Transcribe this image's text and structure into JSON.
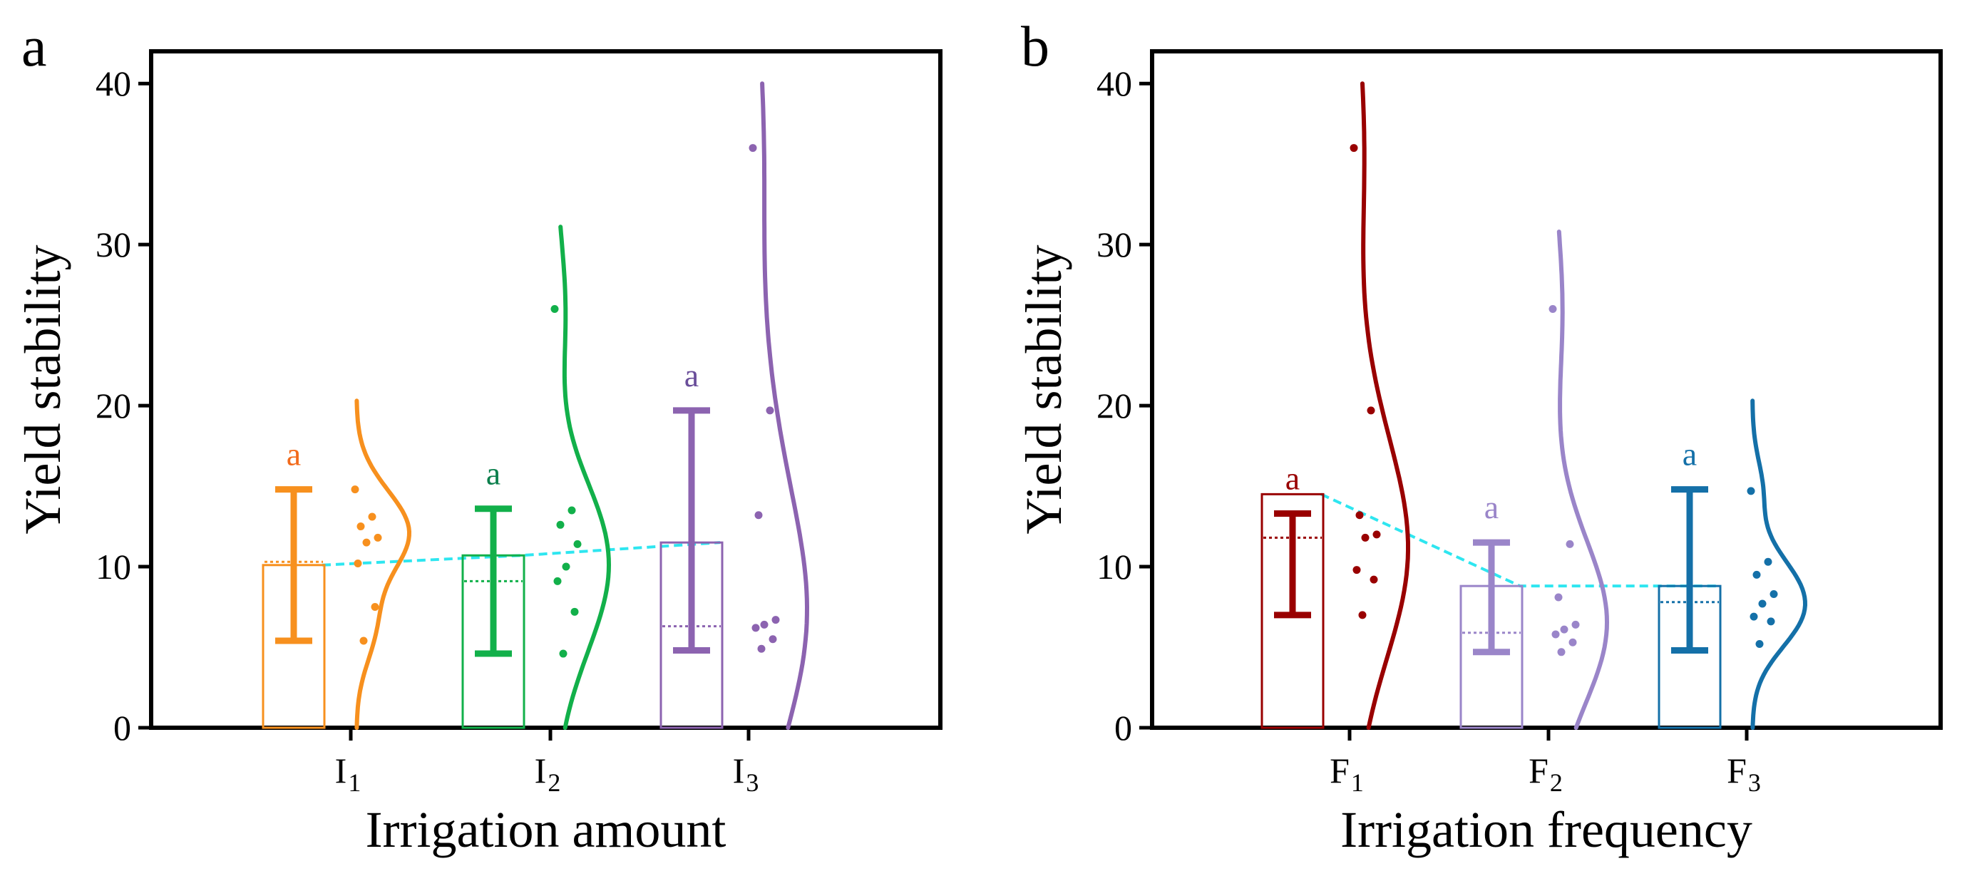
{
  "panels": [
    {
      "letter": "a",
      "xlabel": "Irrigation amount",
      "ylabel": "Yield stability"
    },
    {
      "letter": "b",
      "xlabel": "Irrigation frequency",
      "ylabel": "Yield stability"
    }
  ],
  "chart_data": [
    {
      "type": "bar",
      "title": "",
      "panel_letter": "a",
      "xlabel": "Irrigation amount",
      "ylabel": "Yield stability",
      "ylim": [
        0,
        42
      ],
      "yticks": [
        0,
        10,
        20,
        30,
        40
      ],
      "grid": false,
      "legend": "none",
      "categories": [
        {
          "base": "I",
          "sub": "1"
        },
        {
          "base": "I",
          "sub": "2"
        },
        {
          "base": "I",
          "sub": "3"
        }
      ],
      "colors": [
        "#f7901e",
        "#12b04a",
        "#8c63b0"
      ],
      "letter_colors": [
        "#f26a1b",
        "#0b7f4c",
        "#6a4e9a"
      ],
      "mean": [
        10.1,
        10.7,
        11.5
      ],
      "median": [
        10.3,
        9.1,
        6.3
      ],
      "err_low": [
        5.4,
        4.6,
        4.8
      ],
      "err_high": [
        14.8,
        13.6,
        19.7
      ],
      "significance": [
        "a",
        "a",
        "a"
      ],
      "points": [
        [
          14.8,
          13.1,
          12.5,
          11.8,
          11.5,
          10.2,
          7.5,
          5.4
        ],
        [
          26.0,
          13.5,
          12.6,
          11.4,
          10.0,
          9.1,
          7.2,
          4.6
        ],
        [
          36.0,
          19.7,
          13.2,
          6.7,
          6.4,
          6.2,
          5.5,
          4.9
        ]
      ],
      "density_range": [
        [
          0,
          20.3
        ],
        [
          0,
          31.1
        ],
        [
          0,
          40.0
        ]
      ]
    },
    {
      "type": "bar",
      "title": "",
      "panel_letter": "b",
      "xlabel": "Irrigation frequency",
      "ylabel": "Yield stability",
      "ylim": [
        0,
        42
      ],
      "yticks": [
        0,
        10,
        20,
        30,
        40
      ],
      "grid": false,
      "legend": "none",
      "categories": [
        {
          "base": "F",
          "sub": "1"
        },
        {
          "base": "F",
          "sub": "2"
        },
        {
          "base": "F",
          "sub": "3"
        }
      ],
      "colors": [
        "#990000",
        "#9a85c9",
        "#1470a8"
      ],
      "letter_colors": [
        "#990000",
        "#9a85c9",
        "#1470a8"
      ],
      "mean": [
        14.5,
        8.8,
        8.8
      ],
      "median": [
        11.8,
        5.9,
        7.8
      ],
      "err_low": [
        7.0,
        4.7,
        4.8
      ],
      "err_high": [
        13.3,
        11.5,
        14.8
      ],
      "significance": [
        "a",
        "a",
        "a"
      ],
      "points": [
        [
          36.0,
          19.7,
          13.2,
          12.0,
          11.8,
          9.8,
          9.2,
          7.0
        ],
        [
          26.0,
          11.4,
          8.1,
          6.4,
          6.1,
          5.8,
          5.3,
          4.7
        ],
        [
          14.7,
          10.3,
          9.5,
          8.3,
          7.7,
          6.9,
          6.6,
          5.2
        ]
      ],
      "density_range": [
        [
          0,
          40.0
        ],
        [
          0,
          30.8
        ],
        [
          0,
          20.3
        ]
      ]
    }
  ]
}
